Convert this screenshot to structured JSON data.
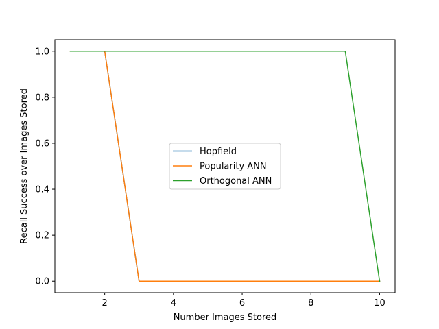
{
  "chart_data": {
    "type": "line",
    "xlabel": "Number Images Stored",
    "ylabel": "Recall Success over Images Stored",
    "xlim": [
      0.55,
      10.45
    ],
    "ylim": [
      -0.05,
      1.05
    ],
    "x_ticks": [
      2,
      4,
      6,
      8,
      10
    ],
    "y_ticks": [
      0.0,
      0.2,
      0.4,
      0.6,
      0.8,
      1.0
    ],
    "x_tick_labels": [
      "2",
      "4",
      "6",
      "8",
      "10"
    ],
    "y_tick_labels": [
      "0.0",
      "0.2",
      "0.4",
      "0.6",
      "0.8",
      "1.0"
    ],
    "grid": false,
    "legend_position": "center",
    "x": [
      1,
      2,
      3,
      4,
      5,
      6,
      7,
      8,
      9,
      10
    ],
    "series": [
      {
        "name": "Hopfield",
        "color": "#1f77b4",
        "values": [
          1,
          1,
          0,
          0,
          0,
          0,
          0,
          0,
          0,
          0
        ]
      },
      {
        "name": "Popularity ANN",
        "color": "#ff7f0e",
        "values": [
          1,
          1,
          0,
          0,
          0,
          0,
          0,
          0,
          0,
          0
        ]
      },
      {
        "name": "Orthogonal ANN",
        "color": "#2ca02c",
        "values": [
          1,
          1,
          1,
          1,
          1,
          1,
          1,
          1,
          1,
          0
        ]
      }
    ]
  }
}
